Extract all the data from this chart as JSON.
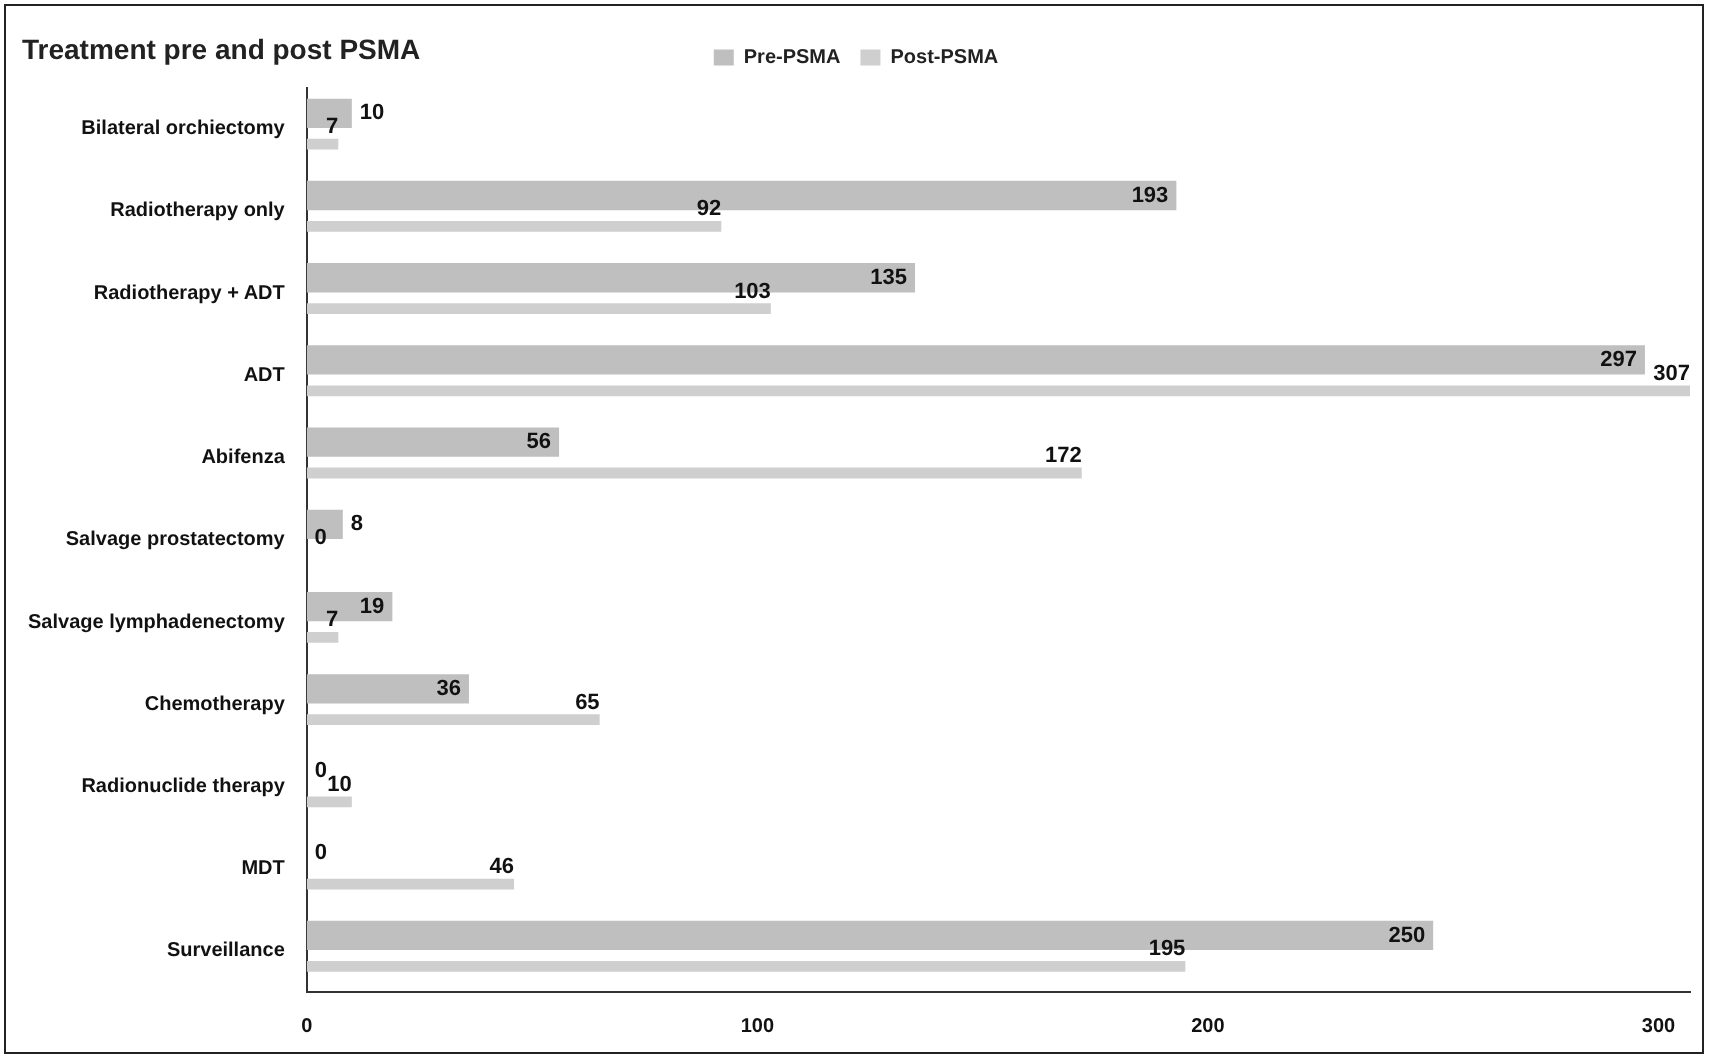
{
  "chart_data": {
    "type": "bar",
    "orientation": "horizontal",
    "title": "Treatment pre and post PSMA",
    "categories": [
      "Bilateral orchiectomy",
      "Radiotherapy only",
      "Radiotherapy + ADT",
      "ADT",
      "Abifenza",
      "Salvage prostatectomy",
      "Salvage lymphadenectomy",
      "Chemotherapy",
      "Radionuclide therapy",
      "MDT",
      "Surveillance"
    ],
    "series": [
      {
        "name": "Pre-PSMA",
        "color": "#bfbfbf",
        "values": [
          10,
          193,
          135,
          297,
          56,
          8,
          19,
          36,
          0,
          0,
          250
        ]
      },
      {
        "name": "Post-PSMA",
        "color": "#cfcfcf",
        "values": [
          7,
          92,
          103,
          307,
          172,
          0,
          7,
          65,
          10,
          46,
          195
        ]
      }
    ],
    "xlim": [
      0,
      307
    ],
    "xticks": [
      0,
      100,
      200,
      300
    ],
    "grid": false,
    "legend": "top",
    "data_labels": true
  }
}
